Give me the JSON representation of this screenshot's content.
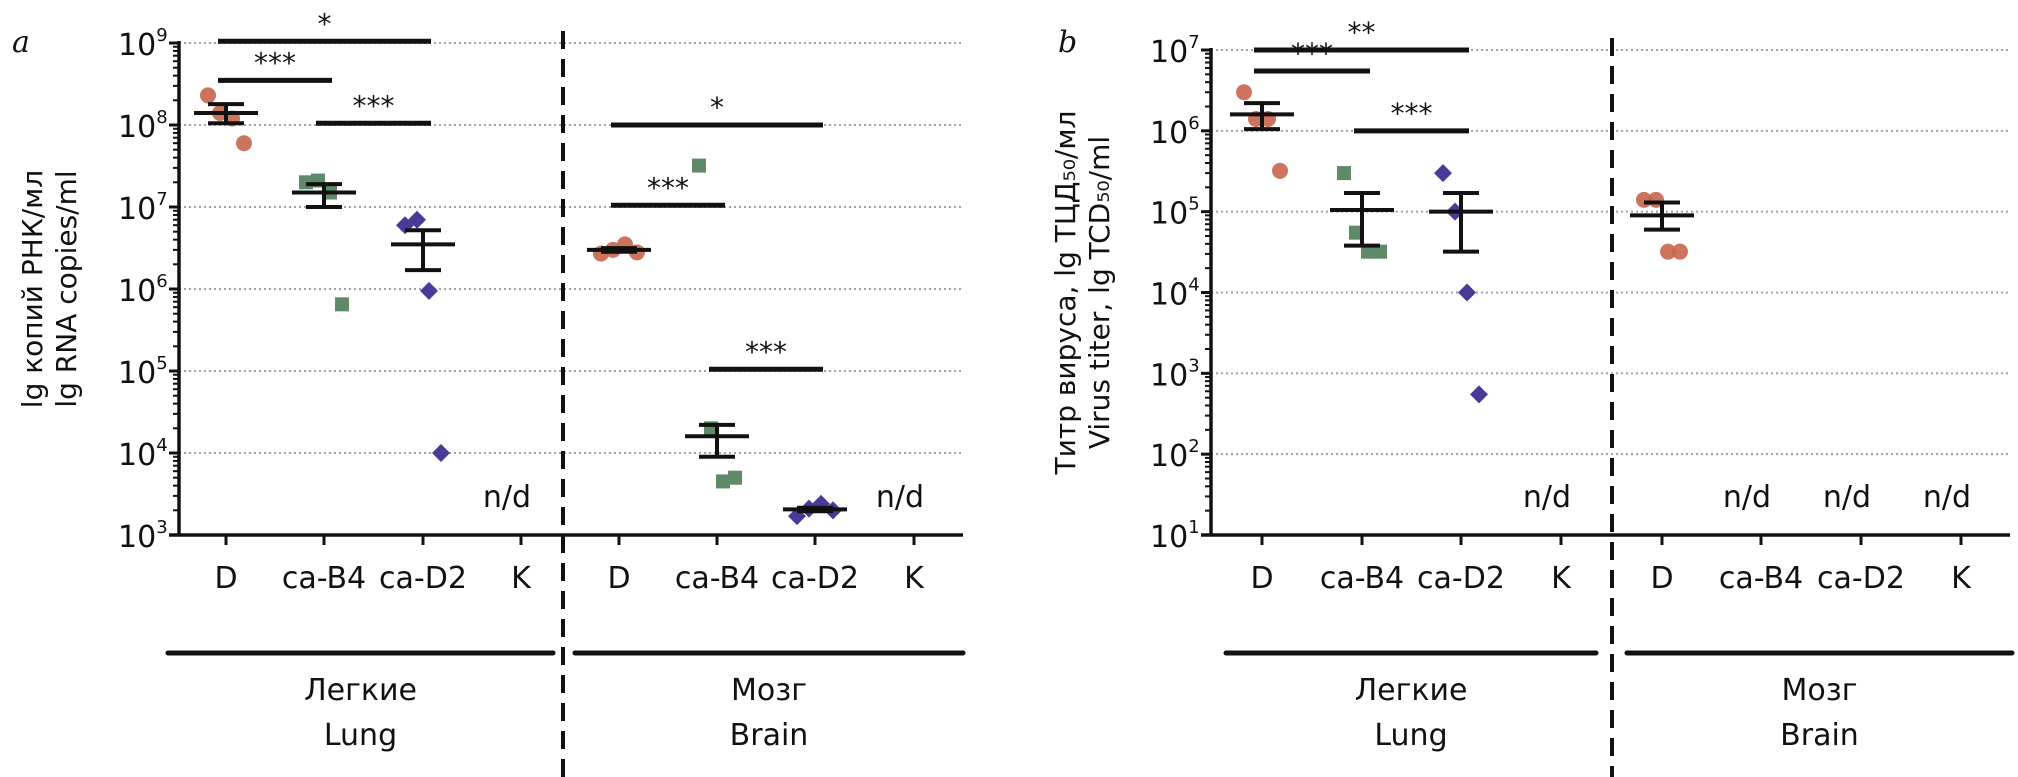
{
  "colors": {
    "D": "#c8654c",
    "ca-B4": "#5e8a68",
    "ca-D2": "#4a3a98",
    "nd_ca-B4": "#5e8a68",
    "nd_ca-D2": "#3c3a9a",
    "nd_default": "#111111",
    "grid": "#9aa4a8",
    "axis": "#111111"
  },
  "chart_data": [
    {
      "type": "scatter",
      "panel_letter": "a",
      "title": "",
      "ylabel_lines": [
        "lg копий РНК/мл",
        "lg RNA copies/ml"
      ],
      "yscale": "log",
      "ylim": [
        1000,
        1000000000
      ],
      "yticks": [
        {
          "base": "10",
          "exp": "3"
        },
        {
          "base": "10",
          "exp": "4"
        },
        {
          "base": "10",
          "exp": "5"
        },
        {
          "base": "10",
          "exp": "6"
        },
        {
          "base": "10",
          "exp": "7"
        },
        {
          "base": "10",
          "exp": "8"
        },
        {
          "base": "10",
          "exp": "9"
        }
      ],
      "grid": true,
      "groups": [
        {
          "name_ru": "Легкие",
          "name_en": "Lung",
          "categories": [
            "D",
            "ca-B4",
            "ca-D2",
            "K"
          ],
          "series": [
            {
              "name": "D",
              "points": [
                230000000,
                140000000,
                120000000,
                60000000
              ],
              "mean": 140000000,
              "sem": [
                105000000,
                180000000
              ]
            },
            {
              "name": "ca-B4",
              "points": [
                20000000,
                21000000,
                15000000,
                650000
              ],
              "mean": 15000000,
              "sem": [
                10000000,
                19000000
              ]
            },
            {
              "name": "ca-D2",
              "points": [
                6000000,
                7000000,
                950000,
                10000
              ],
              "mean": 3500000,
              "sem": [
                1700000,
                5200000
              ]
            },
            {
              "name": "K",
              "points": [],
              "nd": "n/d"
            }
          ],
          "significance": [
            {
              "from": "D",
              "to": "ca-D2",
              "label": "*",
              "level": 1050000000
            },
            {
              "from": "D",
              "to": "ca-B4",
              "label": "***",
              "level": 350000000
            },
            {
              "from": "ca-B4",
              "to": "ca-D2",
              "label": "***",
              "level": 105000000
            }
          ]
        },
        {
          "name_ru": "Мозг",
          "name_en": "Brain",
          "categories": [
            "D",
            "ca-B4",
            "ca-D2",
            "K"
          ],
          "series": [
            {
              "name": "D",
              "points": [
                2700000,
                3000000,
                3500000,
                2800000
              ],
              "mean": 3000000,
              "sem": [
                2850000,
                3150000
              ]
            },
            {
              "name": "ca-B4",
              "points": [
                32000000,
                20000,
                4500,
                5000
              ],
              "mean": 16000,
              "sem": [
                9000,
                22000
              ]
            },
            {
              "name": "ca-D2",
              "points": [
                1700,
                2100,
                2400,
                2000
              ],
              "mean": 2050,
              "sem": [
                1950,
                2150
              ]
            },
            {
              "name": "K",
              "points": [],
              "nd": "n/d"
            }
          ],
          "significance": [
            {
              "from": "D",
              "to": "ca-D2",
              "label": "*",
              "level": 100000000
            },
            {
              "from": "D",
              "to": "ca-B4",
              "label": "***",
              "level": 10500000
            },
            {
              "from": "ca-B4",
              "to": "ca-D2",
              "label": "***",
              "level": 105000
            }
          ]
        }
      ]
    },
    {
      "type": "scatter",
      "panel_letter": "b",
      "title": "",
      "ylabel_lines": [
        "Титр вируса, lg ТЦД₅₀/мл",
        "Virus titer, lg TCD₅₀/ml"
      ],
      "yscale": "log",
      "ylim": [
        10,
        10000000
      ],
      "yticks": [
        {
          "base": "10",
          "exp": "1"
        },
        {
          "base": "10",
          "exp": "2"
        },
        {
          "base": "10",
          "exp": "3"
        },
        {
          "base": "10",
          "exp": "4"
        },
        {
          "base": "10",
          "exp": "5"
        },
        {
          "base": "10",
          "exp": "6"
        },
        {
          "base": "10",
          "exp": "7"
        }
      ],
      "grid": true,
      "groups": [
        {
          "name_ru": "Легкие",
          "name_en": "Lung",
          "categories": [
            "D",
            "ca-B4",
            "ca-D2",
            "K"
          ],
          "series": [
            {
              "name": "D",
              "points": [
                3000000,
                1400000,
                1400000,
                320000
              ],
              "mean": 1600000,
              "sem": [
                1050000,
                2200000
              ]
            },
            {
              "name": "ca-B4",
              "points": [
                300000,
                55000,
                32000,
                32000
              ],
              "mean": 105000,
              "sem": [
                38000,
                170000
              ]
            },
            {
              "name": "ca-D2",
              "points": [
                300000,
                100000,
                10000,
                550
              ],
              "mean": 100000,
              "sem": [
                32000,
                170000
              ]
            },
            {
              "name": "K",
              "points": [],
              "nd": "n/d"
            }
          ],
          "significance": [
            {
              "from": "D",
              "to": "ca-D2",
              "label": "**",
              "level": 10000000
            },
            {
              "from": "D",
              "to": "ca-B4",
              "label": "***",
              "level": 5500000
            },
            {
              "from": "ca-B4",
              "to": "ca-D2",
              "label": "***",
              "level": 1000000
            }
          ]
        },
        {
          "name_ru": "Мозг",
          "name_en": "Brain",
          "categories": [
            "D",
            "ca-B4",
            "ca-D2",
            "K"
          ],
          "series": [
            {
              "name": "D",
              "points": [
                140000,
                140000,
                32000,
                32000
              ],
              "mean": 90000,
              "sem": [
                60000,
                130000
              ]
            },
            {
              "name": "ca-B4",
              "points": [],
              "nd": "n/d"
            },
            {
              "name": "ca-D2",
              "points": [],
              "nd": "n/d"
            },
            {
              "name": "K",
              "points": [],
              "nd": "n/d"
            }
          ],
          "significance": []
        }
      ]
    }
  ]
}
